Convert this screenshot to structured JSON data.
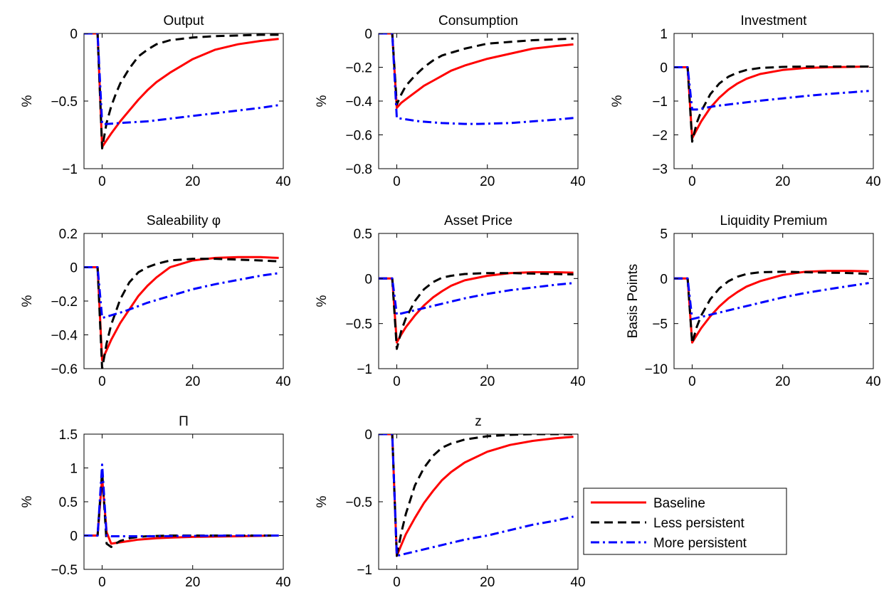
{
  "legend": {
    "entries": [
      {
        "label": "Baseline",
        "color": "#ff0000",
        "dash": "solid"
      },
      {
        "label": "Less persistent",
        "color": "#000000",
        "dash": "dashed"
      },
      {
        "label": "More persistent",
        "color": "#0000ff",
        "dash": "dashdot"
      }
    ],
    "placement": "lower-right"
  },
  "chart_data": [
    {
      "type": "line",
      "title": "Output",
      "ylabel": "%",
      "xlim": [
        -4,
        40
      ],
      "ylim": [
        -1,
        0
      ],
      "xticks": [
        0,
        20,
        40
      ],
      "yticks": [
        0,
        -0.5,
        -1
      ],
      "xtick_labels": [
        "0",
        "20",
        "40"
      ],
      "ytick_labels": [
        "0",
        "−0.5",
        "−1"
      ],
      "series": [
        {
          "name": "Baseline",
          "x": [
            -4,
            -1,
            0,
            1,
            2,
            4,
            6,
            8,
            10,
            12,
            15,
            20,
            25,
            30,
            35,
            39
          ],
          "values": [
            0,
            0,
            -0.84,
            -0.79,
            -0.74,
            -0.65,
            -0.57,
            -0.49,
            -0.42,
            -0.36,
            -0.29,
            -0.19,
            -0.12,
            -0.08,
            -0.055,
            -0.04
          ]
        },
        {
          "name": "Less persistent",
          "x": [
            -4,
            -1,
            0,
            1,
            2,
            3,
            4,
            6,
            8,
            10,
            12,
            15,
            20,
            25,
            30,
            35,
            39
          ],
          "values": [
            0,
            0,
            -0.85,
            -0.66,
            -0.54,
            -0.45,
            -0.37,
            -0.26,
            -0.17,
            -0.12,
            -0.08,
            -0.05,
            -0.03,
            -0.02,
            -0.015,
            -0.01,
            -0.01
          ]
        },
        {
          "name": "More persistent",
          "x": [
            -4,
            -1,
            0,
            1,
            5,
            10,
            15,
            20,
            25,
            30,
            35,
            39
          ],
          "values": [
            0,
            0,
            -0.67,
            -0.67,
            -0.66,
            -0.65,
            -0.63,
            -0.61,
            -0.59,
            -0.57,
            -0.55,
            -0.53
          ]
        }
      ]
    },
    {
      "type": "line",
      "title": "Consumption",
      "ylabel": "%",
      "xlim": [
        -4,
        40
      ],
      "ylim": [
        -0.8,
        0
      ],
      "xticks": [
        0,
        20,
        40
      ],
      "yticks": [
        0,
        -0.2,
        -0.4,
        -0.6,
        -0.8
      ],
      "xtick_labels": [
        "0",
        "20",
        "40"
      ],
      "ytick_labels": [
        "0",
        "−0.2",
        "−0.4",
        "−0.6",
        "−0.8"
      ],
      "series": [
        {
          "name": "Baseline",
          "x": [
            -4,
            -1,
            0,
            1,
            2,
            4,
            6,
            8,
            10,
            12,
            15,
            20,
            25,
            30,
            35,
            39
          ],
          "values": [
            0,
            0,
            -0.44,
            -0.41,
            -0.39,
            -0.35,
            -0.31,
            -0.28,
            -0.25,
            -0.22,
            -0.19,
            -0.15,
            -0.12,
            -0.09,
            -0.075,
            -0.065
          ]
        },
        {
          "name": "Less persistent",
          "x": [
            -4,
            -1,
            0,
            1,
            2,
            4,
            6,
            8,
            10,
            15,
            20,
            25,
            30,
            35,
            39
          ],
          "values": [
            0,
            0,
            -0.42,
            -0.36,
            -0.31,
            -0.25,
            -0.2,
            -0.16,
            -0.13,
            -0.09,
            -0.06,
            -0.05,
            -0.04,
            -0.035,
            -0.03
          ]
        },
        {
          "name": "More persistent",
          "x": [
            -4,
            -1,
            0,
            5,
            10,
            15,
            18,
            25,
            30,
            35,
            39
          ],
          "values": [
            0,
            0,
            -0.5,
            -0.52,
            -0.53,
            -0.535,
            -0.535,
            -0.53,
            -0.52,
            -0.51,
            -0.5
          ]
        }
      ]
    },
    {
      "type": "line",
      "title": "Investment",
      "ylabel": "%",
      "xlim": [
        -4,
        40
      ],
      "ylim": [
        -3,
        1
      ],
      "xticks": [
        0,
        20,
        40
      ],
      "yticks": [
        1,
        0,
        -1,
        -2,
        -3
      ],
      "xtick_labels": [
        "0",
        "20",
        "40"
      ],
      "ytick_labels": [
        "1",
        "0",
        "−1",
        "−2",
        "−3"
      ],
      "series": [
        {
          "name": "Baseline",
          "x": [
            -4,
            -1,
            0,
            1,
            2,
            4,
            6,
            8,
            10,
            12,
            15,
            20,
            25,
            30,
            35,
            39
          ],
          "values": [
            0,
            0,
            -2.1,
            -1.85,
            -1.6,
            -1.2,
            -0.9,
            -0.66,
            -0.48,
            -0.34,
            -0.2,
            -0.08,
            -0.02,
            0.0,
            0.01,
            0.02
          ]
        },
        {
          "name": "Less persistent",
          "x": [
            -4,
            -1,
            0,
            1,
            2,
            4,
            6,
            8,
            10,
            12,
            15,
            20,
            25,
            30,
            35,
            39
          ],
          "values": [
            0,
            0,
            -2.2,
            -1.65,
            -1.3,
            -0.8,
            -0.48,
            -0.28,
            -0.16,
            -0.08,
            -0.02,
            0.01,
            0.02,
            0.02,
            0.02,
            0.02
          ]
        },
        {
          "name": "More persistent",
          "x": [
            -4,
            -1,
            0,
            1,
            5,
            10,
            15,
            20,
            25,
            30,
            35,
            39
          ],
          "values": [
            0,
            0,
            -1.25,
            -1.25,
            -1.15,
            -1.07,
            -0.99,
            -0.92,
            -0.85,
            -0.79,
            -0.74,
            -0.7
          ]
        }
      ]
    },
    {
      "type": "line",
      "title": "Saleability φ",
      "ylabel": "%",
      "xlim": [
        -4,
        40
      ],
      "ylim": [
        -0.6,
        0.2
      ],
      "xticks": [
        0,
        20,
        40
      ],
      "yticks": [
        0.2,
        0,
        -0.2,
        -0.4,
        -0.6
      ],
      "xtick_labels": [
        "0",
        "20",
        "40"
      ],
      "ytick_labels": [
        "0.2",
        "0",
        "−0.2",
        "−0.4",
        "−0.6"
      ],
      "series": [
        {
          "name": "Baseline",
          "x": [
            -4,
            -1,
            0,
            1,
            2,
            4,
            6,
            8,
            10,
            12,
            15,
            20,
            25,
            30,
            35,
            39
          ],
          "values": [
            0,
            0,
            -0.55,
            -0.49,
            -0.43,
            -0.33,
            -0.25,
            -0.17,
            -0.11,
            -0.06,
            0.0,
            0.04,
            0.055,
            0.06,
            0.06,
            0.055
          ]
        },
        {
          "name": "Less persistent",
          "x": [
            -4,
            -1,
            0,
            1,
            2,
            4,
            6,
            8,
            10,
            12,
            15,
            20,
            25,
            30,
            35,
            39
          ],
          "values": [
            0,
            0,
            -0.6,
            -0.45,
            -0.34,
            -0.19,
            -0.09,
            -0.03,
            0.0,
            0.02,
            0.04,
            0.05,
            0.05,
            0.045,
            0.04,
            0.035
          ]
        },
        {
          "name": "More persistent",
          "x": [
            -4,
            -1,
            0,
            5,
            10,
            15,
            20,
            25,
            30,
            35,
            39
          ],
          "values": [
            0,
            0,
            -0.3,
            -0.26,
            -0.21,
            -0.17,
            -0.13,
            -0.1,
            -0.075,
            -0.05,
            -0.035
          ]
        }
      ]
    },
    {
      "type": "line",
      "title": "Asset Price",
      "ylabel": "%",
      "xlim": [
        -4,
        40
      ],
      "ylim": [
        -1,
        0.5
      ],
      "xticks": [
        0,
        20,
        40
      ],
      "yticks": [
        0.5,
        0,
        -0.5,
        -1
      ],
      "xtick_labels": [
        "0",
        "20",
        "40"
      ],
      "ytick_labels": [
        "0.5",
        "0",
        "−0.5",
        "−1"
      ],
      "series": [
        {
          "name": "Baseline",
          "x": [
            -4,
            -1,
            0,
            1,
            2,
            4,
            6,
            8,
            10,
            12,
            15,
            20,
            25,
            30,
            35,
            39
          ],
          "values": [
            0,
            0,
            -0.71,
            -0.62,
            -0.54,
            -0.41,
            -0.3,
            -0.21,
            -0.14,
            -0.08,
            -0.02,
            0.03,
            0.06,
            0.07,
            0.07,
            0.065
          ]
        },
        {
          "name": "Less persistent",
          "x": [
            -4,
            -1,
            0,
            1,
            2,
            4,
            6,
            8,
            10,
            12,
            15,
            20,
            25,
            30,
            35,
            39
          ],
          "values": [
            0,
            0,
            -0.78,
            -0.58,
            -0.44,
            -0.25,
            -0.12,
            -0.04,
            0.01,
            0.03,
            0.05,
            0.06,
            0.06,
            0.055,
            0.05,
            0.045
          ]
        },
        {
          "name": "More persistent",
          "x": [
            -4,
            -1,
            0,
            5,
            10,
            15,
            20,
            25,
            30,
            35,
            39
          ],
          "values": [
            0,
            0,
            -0.4,
            -0.34,
            -0.28,
            -0.22,
            -0.17,
            -0.13,
            -0.1,
            -0.07,
            -0.05
          ]
        }
      ]
    },
    {
      "type": "line",
      "title": "Liquidity Premium",
      "ylabel": "Basis Points",
      "xlim": [
        -4,
        40
      ],
      "ylim": [
        -10,
        5
      ],
      "xticks": [
        0,
        20,
        40
      ],
      "yticks": [
        5,
        0,
        -5,
        -10
      ],
      "xtick_labels": [
        "0",
        "20",
        "40"
      ],
      "ytick_labels": [
        "5",
        "0",
        "−5",
        "−10"
      ],
      "series": [
        {
          "name": "Baseline",
          "x": [
            -4,
            -1,
            0,
            1,
            2,
            4,
            6,
            8,
            10,
            12,
            15,
            20,
            25,
            30,
            35,
            39
          ],
          "values": [
            0,
            0,
            -7.1,
            -6.3,
            -5.5,
            -4.2,
            -3.1,
            -2.2,
            -1.5,
            -0.9,
            -0.3,
            0.4,
            0.75,
            0.85,
            0.85,
            0.8
          ]
        },
        {
          "name": "Less persistent",
          "x": [
            -4,
            -1,
            0,
            1,
            2,
            4,
            6,
            8,
            10,
            12,
            15,
            20,
            25,
            30,
            35,
            39
          ],
          "values": [
            0,
            0,
            -7.2,
            -5.4,
            -4.1,
            -2.3,
            -1.1,
            -0.3,
            0.2,
            0.5,
            0.7,
            0.75,
            0.7,
            0.65,
            0.6,
            0.5
          ]
        },
        {
          "name": "More persistent",
          "x": [
            -4,
            -1,
            0,
            5,
            10,
            15,
            20,
            25,
            30,
            35,
            39
          ],
          "values": [
            0,
            0,
            -4.5,
            -3.9,
            -3.3,
            -2.7,
            -2.1,
            -1.6,
            -1.2,
            -0.8,
            -0.5
          ]
        }
      ]
    },
    {
      "type": "line",
      "title": "Π",
      "ylabel": "%",
      "xlim": [
        -4,
        40
      ],
      "ylim": [
        -0.5,
        1.5
      ],
      "xticks": [
        0,
        20,
        40
      ],
      "yticks": [
        1.5,
        1,
        0.5,
        0,
        -0.5
      ],
      "xtick_labels": [
        "0",
        "20",
        "40"
      ],
      "ytick_labels": [
        "1.5",
        "1",
        "0.5",
        "0",
        "−0.5"
      ],
      "series": [
        {
          "name": "Baseline",
          "x": [
            -4,
            -1,
            0,
            1,
            2,
            4,
            6,
            8,
            10,
            12,
            15,
            20,
            30,
            39
          ],
          "values": [
            0,
            0,
            0.85,
            0.05,
            -0.12,
            -0.1,
            -0.08,
            -0.06,
            -0.05,
            -0.04,
            -0.03,
            -0.02,
            -0.01,
            0.0
          ]
        },
        {
          "name": "Less persistent",
          "x": [
            -4,
            -1,
            0,
            1,
            2,
            3,
            4,
            6,
            8,
            10,
            15,
            20,
            30,
            39
          ],
          "values": [
            0,
            0,
            0.95,
            -0.12,
            -0.17,
            -0.12,
            -0.08,
            -0.04,
            -0.02,
            -0.01,
            0.0,
            0.0,
            0.0,
            0.0
          ]
        },
        {
          "name": "More persistent",
          "x": [
            -4,
            -1,
            0,
            1,
            2,
            5,
            10,
            20,
            30,
            39
          ],
          "values": [
            0,
            0,
            1.05,
            0.0,
            -0.01,
            -0.01,
            -0.01,
            -0.005,
            0.0,
            0.0
          ]
        }
      ]
    },
    {
      "type": "line",
      "title": "z",
      "ylabel": "%",
      "xlim": [
        -4,
        40
      ],
      "ylim": [
        -1,
        0
      ],
      "xticks": [
        0,
        20,
        40
      ],
      "yticks": [
        0,
        -0.5,
        -1
      ],
      "xtick_labels": [
        "0",
        "20",
        "40"
      ],
      "ytick_labels": [
        "0",
        "−0.5",
        "−1"
      ],
      "series": [
        {
          "name": "Baseline",
          "x": [
            -4,
            -1,
            0,
            1,
            2,
            4,
            6,
            8,
            10,
            12,
            15,
            20,
            25,
            30,
            35,
            39
          ],
          "values": [
            0,
            0,
            -0.9,
            -0.82,
            -0.74,
            -0.62,
            -0.51,
            -0.42,
            -0.34,
            -0.28,
            -0.21,
            -0.13,
            -0.08,
            -0.05,
            -0.03,
            -0.02
          ]
        },
        {
          "name": "Less persistent",
          "x": [
            -4,
            -1,
            0,
            1,
            2,
            4,
            6,
            8,
            10,
            12,
            15,
            20,
            25,
            30,
            35,
            39
          ],
          "values": [
            0,
            0,
            -0.9,
            -0.73,
            -0.59,
            -0.38,
            -0.25,
            -0.16,
            -0.1,
            -0.07,
            -0.04,
            -0.015,
            -0.005,
            0.0,
            0.0,
            0.0
          ]
        },
        {
          "name": "More persistent",
          "x": [
            -4,
            -1,
            0,
            5,
            10,
            15,
            20,
            25,
            30,
            35,
            39
          ],
          "values": [
            0,
            0,
            -0.9,
            -0.86,
            -0.82,
            -0.78,
            -0.75,
            -0.71,
            -0.67,
            -0.64,
            -0.61
          ]
        }
      ]
    }
  ]
}
